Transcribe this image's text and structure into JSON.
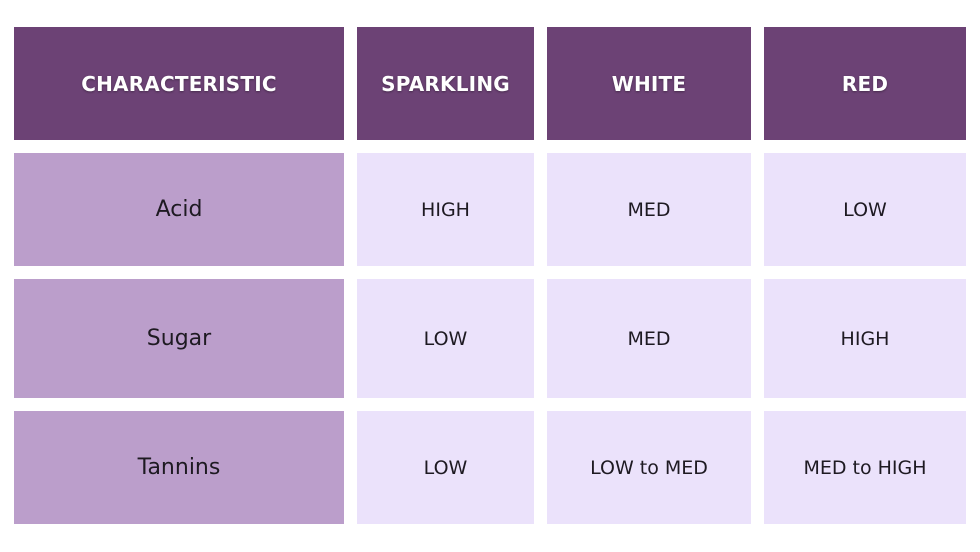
{
  "table": {
    "headers": [
      "CHARACTERISTIC",
      "SPARKLING",
      "WHITE",
      "RED"
    ],
    "rows": [
      {
        "label": "Acid",
        "values": [
          "HIGH",
          "MED",
          "LOW"
        ]
      },
      {
        "label": "Sugar",
        "values": [
          "LOW",
          "MED",
          "HIGH"
        ]
      },
      {
        "label": "Tannins",
        "values": [
          "LOW",
          "LOW to MED",
          "MED to HIGH"
        ]
      }
    ]
  },
  "colors": {
    "header_bg": "#6c4275",
    "row_label_bg": "#bb9ecb",
    "cell_bg": "#ebe2fb"
  }
}
